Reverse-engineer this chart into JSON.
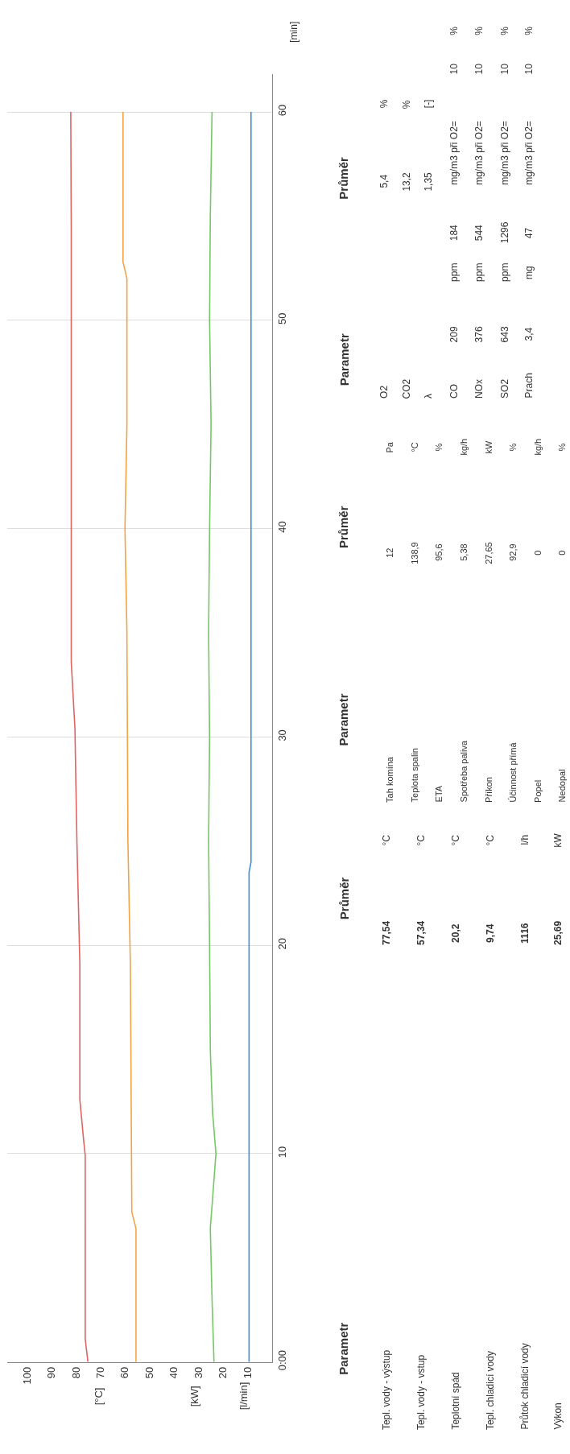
{
  "chart_data": {
    "type": "line",
    "orientation": "horizontal",
    "grid": "y",
    "marker": "none",
    "line_style": "solid",
    "xlim": [
      108,
      0
    ],
    "xticks": [
      100,
      90,
      80,
      70,
      60,
      50,
      40,
      30,
      20,
      10
    ],
    "ylim": [
      0,
      61.8
    ],
    "yticks": [
      {
        "value": 0,
        "label": "0:00"
      },
      10,
      20,
      30,
      40,
      50,
      60
    ],
    "series": [
      {
        "color": "#e06464",
        "x": [
          0,
          1.1,
          9.9,
          10.7,
          12.6,
          19.1,
          25,
          30.4,
          33.6,
          54.2,
          60
        ],
        "values": [
          75.1,
          76.2,
          76.2,
          76.9,
          78.4,
          78.4,
          79.6,
          80.4,
          81.9,
          81.9,
          82.1
        ]
      },
      {
        "color": "#f0a446",
        "x": [
          0,
          6.4,
          7.2,
          19.1,
          25,
          35,
          40,
          45,
          52,
          52.8,
          60
        ],
        "values": [
          55.5,
          55.5,
          57.2,
          57.8,
          58.8,
          59.2,
          60,
          59.2,
          59.2,
          60.8,
          60.8
        ]
      },
      {
        "color": "#74c866",
        "x": [
          0,
          3,
          6.4,
          10,
          12,
          15,
          20,
          25,
          30,
          35,
          40,
          45,
          50,
          55,
          60
        ],
        "values": [
          23.7,
          24.5,
          25.2,
          22.9,
          24.3,
          25.2,
          25.5,
          25.9,
          25.5,
          25.9,
          25.5,
          24.9,
          25.5,
          25.2,
          24.5
        ]
      },
      {
        "color": "#3c8ee0",
        "x": [
          0,
          23.5,
          24,
          28.3,
          35,
          60
        ],
        "values": [
          9.4,
          9.4,
          8.6,
          8.6,
          8.6,
          8.6
        ]
      }
    ],
    "annotations": [
      "[min]",
      "[°C]",
      "[kW]",
      "[l/min]",
      "Parametr",
      "Průměr",
      "Tepl. vody - výstup",
      "Tepl. vody - vstup",
      "Teplotní spád",
      "Tepl. chladicí vody",
      "Průtok chladicí vody",
      "Výkon",
      "77,54",
      "57,34",
      "20,2",
      "9,74",
      "1116",
      "25,69",
      "°C",
      "°C",
      "°C",
      "°C",
      "l/h",
      "kW",
      "Parametr",
      "Průměr",
      "Tah komína",
      "Teplota spalin",
      "ETA",
      "Spotřeba paliva",
      "Příkon",
      "Účinnost přímá",
      "Popel",
      "Nedopal",
      "12",
      "138,9",
      "95,6",
      "5,38",
      "27,65",
      "92,9",
      "0",
      "0",
      "Pa",
      "°C",
      "%",
      "kg/h",
      "kW",
      "%",
      "kg/h",
      "%",
      "Parametr",
      "Průměr",
      "O2",
      "CO2",
      "λ",
      "CO",
      "NOx",
      "SO2",
      "Prach",
      "5,4",
      "13,2",
      "1,35",
      "%",
      "%",
      "[-]",
      "209",
      "376",
      "643",
      "3,4",
      "ppm",
      "ppm",
      "ppm",
      "mg",
      "184",
      "544",
      "1296",
      "47",
      "mg/m3 při O2=",
      "mg/m3 při O2=",
      "mg/m3 při O2=",
      "mg/m3 při O2=",
      "10",
      "10",
      "10",
      "10",
      "%",
      "%",
      "%",
      "%"
    ]
  }
}
